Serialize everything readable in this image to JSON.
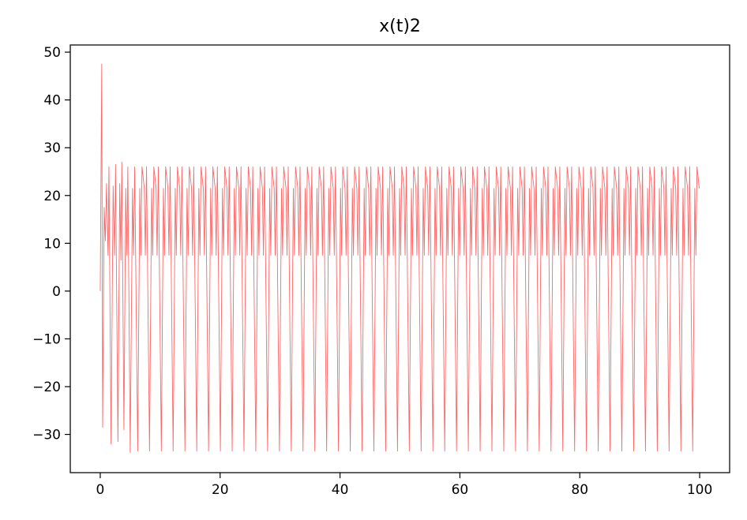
{
  "chart_data": {
    "type": "line",
    "title": "x(t)2",
    "xlabel": "",
    "ylabel": "",
    "xlim": [
      -5,
      105
    ],
    "ylim": [
      -38,
      51.5
    ],
    "xticks": [
      0,
      20,
      40,
      60,
      80,
      100
    ],
    "xtick_labels": [
      "0",
      "20",
      "40",
      "60",
      "80",
      "100"
    ],
    "yticks": [
      -30,
      -20,
      -10,
      0,
      10,
      20,
      30,
      40,
      50
    ],
    "ytick_labels": [
      "−30",
      "−20",
      "−10",
      "0",
      "10",
      "20",
      "30",
      "40",
      "50"
    ],
    "grid": false,
    "legend": "none",
    "series": [
      {
        "color": "#ff0000",
        "alpha": 0.6,
        "description": "Oscillatory signal with initial transient; settles into a periodic pattern with peaks ~26 and ~21.5, troughs ~7.5 and ~-33.5",
        "transient": [
          [
            0.0,
            0.0
          ],
          [
            0.25,
            47.5
          ],
          [
            0.4,
            -28.5
          ],
          [
            0.65,
            17.5
          ],
          [
            0.85,
            10.5
          ],
          [
            1.05,
            22.5
          ],
          [
            1.3,
            7.5
          ],
          [
            1.45,
            26.0
          ],
          [
            1.8,
            -32.0
          ],
          [
            2.15,
            22.0
          ],
          [
            2.4,
            7.5
          ],
          [
            2.55,
            26.5
          ],
          [
            2.95,
            -31.5
          ],
          [
            3.25,
            22.5
          ],
          [
            3.45,
            6.5
          ],
          [
            3.6,
            27.0
          ],
          [
            3.95,
            -29.0
          ],
          [
            4.25,
            21.5
          ],
          [
            4.45,
            7.5
          ],
          [
            4.6,
            26.0
          ],
          [
            5.0,
            -33.8
          ]
        ],
        "steady_state": {
          "start_x": 5.0,
          "end_x": 100.0,
          "period": 1.97,
          "cycle_points": [
            [
              0.0,
              -33.5
            ],
            [
              0.38,
              21.5
            ],
            [
              0.55,
              7.5
            ],
            [
              0.75,
              26.0
            ],
            [
              1.25,
              -33.5
            ],
            [
              1.6,
              21.5
            ],
            [
              1.78,
              7.5
            ],
            [
              1.97,
              26.0
            ]
          ]
        }
      }
    ]
  }
}
